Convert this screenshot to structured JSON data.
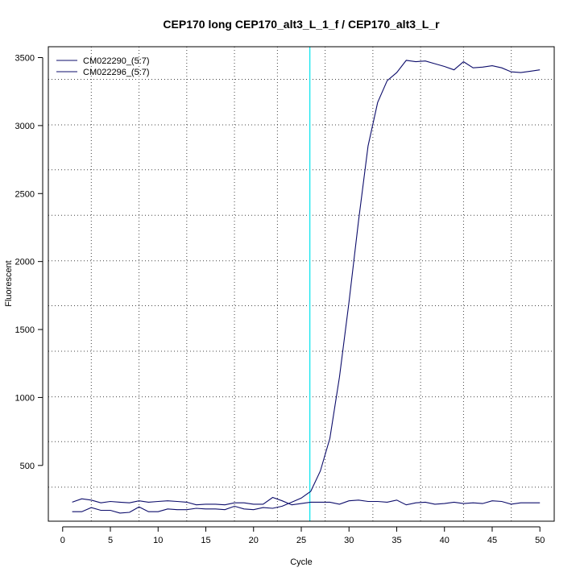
{
  "chart_data": {
    "type": "line",
    "title": "CEP170 long CEP170_alt3_L_1_f / CEP170_alt3_L_r",
    "xlabel": "Cycle",
    "ylabel": "Fluorescent",
    "xlim": [
      -1.5,
      51.5
    ],
    "ylim": [
      90,
      3580
    ],
    "xticks": [
      0,
      5,
      10,
      15,
      20,
      25,
      30,
      35,
      40,
      45,
      50
    ],
    "yticks": [
      500,
      1000,
      1500,
      2000,
      2500,
      3000,
      3500
    ],
    "grid": "dotted",
    "vgrid": [
      3,
      8,
      13,
      18,
      22.5,
      27.5,
      32.5,
      37.5,
      42,
      47
    ],
    "hgrid": [
      340,
      675,
      1005,
      1340,
      1675,
      2005,
      2340,
      2675,
      3005,
      3340
    ],
    "threshold_x": 25.9,
    "threshold_color": "#00e5ee",
    "legend_position": "top-left",
    "series": [
      {
        "name": "CM022290_(5:7)",
        "color": "#0d0d6b",
        "x": [
          1,
          2,
          3,
          4,
          5,
          6,
          7,
          8,
          9,
          10,
          11,
          12,
          13,
          14,
          15,
          16,
          17,
          18,
          19,
          20,
          21,
          22,
          23,
          24,
          25,
          26,
          27,
          28,
          29,
          30,
          31,
          32,
          33,
          34,
          35,
          36,
          37,
          38,
          39,
          40,
          41,
          42,
          43,
          44,
          45,
          46,
          47,
          48,
          49,
          50
        ],
        "values": [
          160,
          160,
          190,
          170,
          170,
          150,
          155,
          195,
          160,
          160,
          180,
          175,
          175,
          185,
          180,
          180,
          175,
          200,
          180,
          175,
          190,
          185,
          200,
          230,
          260,
          310,
          460,
          700,
          1150,
          1700,
          2300,
          2850,
          3170,
          3330,
          3390,
          3480,
          3470,
          3475,
          3455,
          3435,
          3410,
          3470,
          3425,
          3430,
          3440,
          3425,
          3395,
          3390,
          3400,
          3410
        ]
      },
      {
        "name": "CM022296_(5:7)",
        "color": "#0d0d6b",
        "x": [
          1,
          2,
          3,
          4,
          5,
          6,
          7,
          8,
          9,
          10,
          11,
          12,
          13,
          14,
          15,
          16,
          17,
          18,
          19,
          20,
          21,
          22,
          23,
          24,
          25,
          26,
          27,
          28,
          29,
          30,
          31,
          32,
          33,
          34,
          35,
          36,
          37,
          38,
          39,
          40,
          41,
          42,
          43,
          44,
          45,
          46,
          47,
          48,
          49,
          50
        ],
        "values": [
          230,
          255,
          245,
          225,
          235,
          230,
          225,
          240,
          230,
          235,
          240,
          235,
          230,
          210,
          215,
          215,
          210,
          225,
          225,
          215,
          215,
          265,
          240,
          210,
          220,
          230,
          230,
          230,
          215,
          240,
          245,
          235,
          235,
          230,
          245,
          210,
          225,
          230,
          215,
          220,
          230,
          220,
          225,
          220,
          240,
          235,
          215,
          225,
          225,
          225
        ]
      }
    ]
  }
}
